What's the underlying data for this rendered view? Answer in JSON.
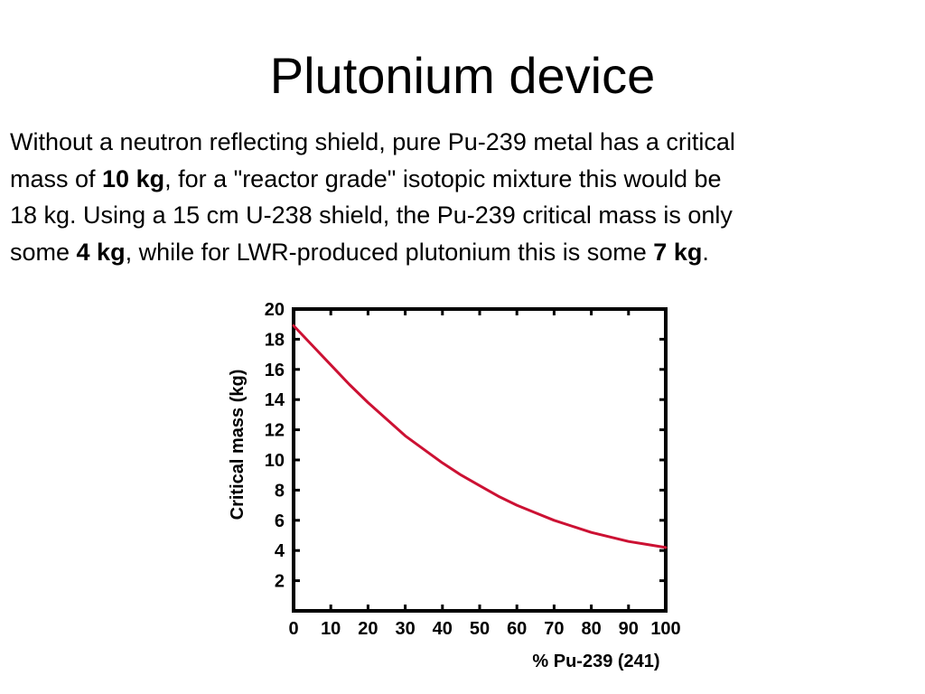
{
  "slide": {
    "title": "Plutonium device",
    "paragraph": {
      "line1": "Without a neutron reflecting shield, pure Pu-239 metal has a critical",
      "line2_pre": "mass of ",
      "line2_bold": "10 kg",
      "line2_post": ", for a \"reactor grade\" isotopic mixture this would be",
      "line3": "18 kg. Using a 15 cm U-238 shield, the Pu-239 critical mass is only",
      "line4_pre": "some ",
      "line4_bold1": "4 kg",
      "line4_mid": ", while for LWR-produced plutonium this is some ",
      "line4_bold2": "7 kg",
      "line4_post": "."
    }
  },
  "chart_data": {
    "type": "line",
    "xlabel": "% Pu-239 (241)",
    "ylabel": "Critical mass (kg)",
    "xlim": [
      0,
      100
    ],
    "ylim": [
      0,
      20
    ],
    "x_ticks": [
      "0",
      "10",
      "20",
      "30",
      "40",
      "50",
      "60",
      "70",
      "80",
      "90",
      "100"
    ],
    "y_ticks": [
      "2",
      "4",
      "6",
      "8",
      "10",
      "12",
      "14",
      "16",
      "18",
      "20"
    ],
    "grid": false,
    "series": [
      {
        "color": "#cc1133",
        "x": [
          0,
          5,
          10,
          15,
          20,
          25,
          30,
          35,
          40,
          45,
          50,
          55,
          60,
          65,
          70,
          75,
          80,
          85,
          90,
          95,
          100
        ],
        "y": [
          18.9,
          17.6,
          16.3,
          15.0,
          13.8,
          12.7,
          11.6,
          10.7,
          9.8,
          9.0,
          8.3,
          7.6,
          7.0,
          6.5,
          6.0,
          5.6,
          5.2,
          4.9,
          4.6,
          4.4,
          4.2
        ]
      }
    ]
  }
}
